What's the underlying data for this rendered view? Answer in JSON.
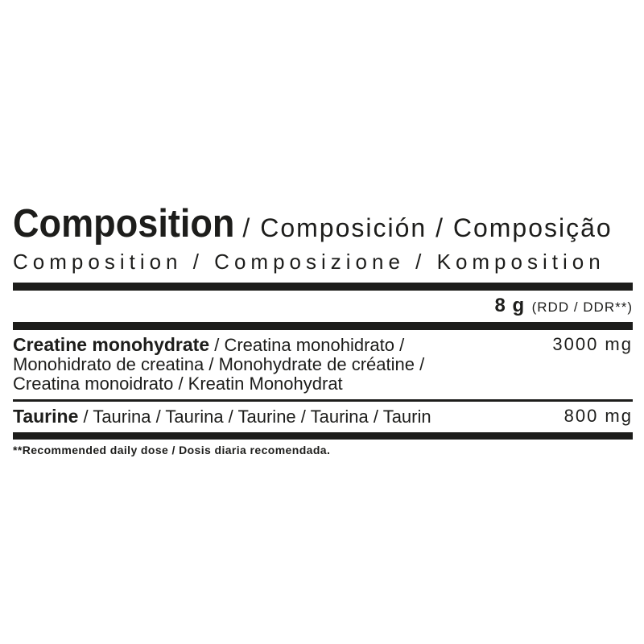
{
  "label": {
    "title": {
      "main": "Composition",
      "secondary": "/ Composición / Composição",
      "line2": "Composition / Composizione / Komposition"
    },
    "serving": {
      "amount": "8 g",
      "note": "(RDD / DDR**)"
    },
    "ingredients": [
      {
        "name": "Creatine monohydrate",
        "translations": " / Creatina monohidrato /\nMonohidrato de creatina / Monohydrate de créatine /\nCreatina monoidrato / Kreatin Monohydrat",
        "amount": "3000 mg"
      },
      {
        "name": "Taurine",
        "translations": " / Taurina / Taurina / Taurine / Taurina / Taurin",
        "amount": "800 mg"
      }
    ],
    "footnote": "**Recommended daily dose / Dosis diaria recomendada.",
    "colors": {
      "ink": "#1d1d1b",
      "background": "#ffffff"
    }
  }
}
